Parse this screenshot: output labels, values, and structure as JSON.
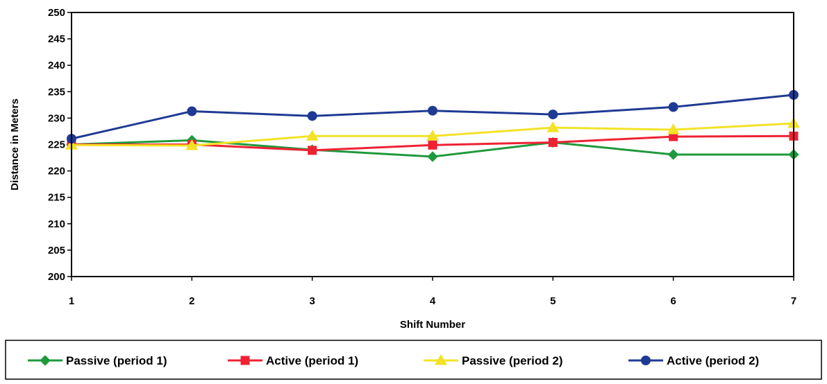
{
  "chart_data": {
    "type": "line",
    "title": "",
    "xlabel": "Shift Number",
    "ylabel": "Distance in Meters",
    "x": [
      1,
      2,
      3,
      4,
      5,
      6,
      7
    ],
    "xlim": [
      1,
      7
    ],
    "ylim": [
      200,
      250
    ],
    "yticks": [
      200,
      205,
      210,
      215,
      220,
      225,
      230,
      235,
      240,
      245,
      250
    ],
    "grid": false,
    "legend_position": "bottom",
    "series": [
      {
        "name": "Passive (period 1)",
        "color": "#1e9a3c",
        "marker": "diamond",
        "values": [
          225.0,
          225.8,
          224.0,
          222.7,
          225.4,
          223.1,
          223.1
        ]
      },
      {
        "name": "Active (period 1)",
        "color": "#ee2233",
        "marker": "square",
        "values": [
          225.0,
          225.0,
          223.9,
          224.9,
          225.4,
          226.5,
          226.6
        ]
      },
      {
        "name": "Passive (period 2)",
        "color": "#f3e227",
        "marker": "triangle",
        "values": [
          224.9,
          224.8,
          226.6,
          226.6,
          228.2,
          227.8,
          229.0
        ]
      },
      {
        "name": "Active (period 2)",
        "color": "#1f3a93",
        "marker": "circle",
        "values": [
          226.1,
          231.3,
          230.4,
          231.4,
          230.7,
          232.1,
          234.4
        ]
      }
    ]
  }
}
